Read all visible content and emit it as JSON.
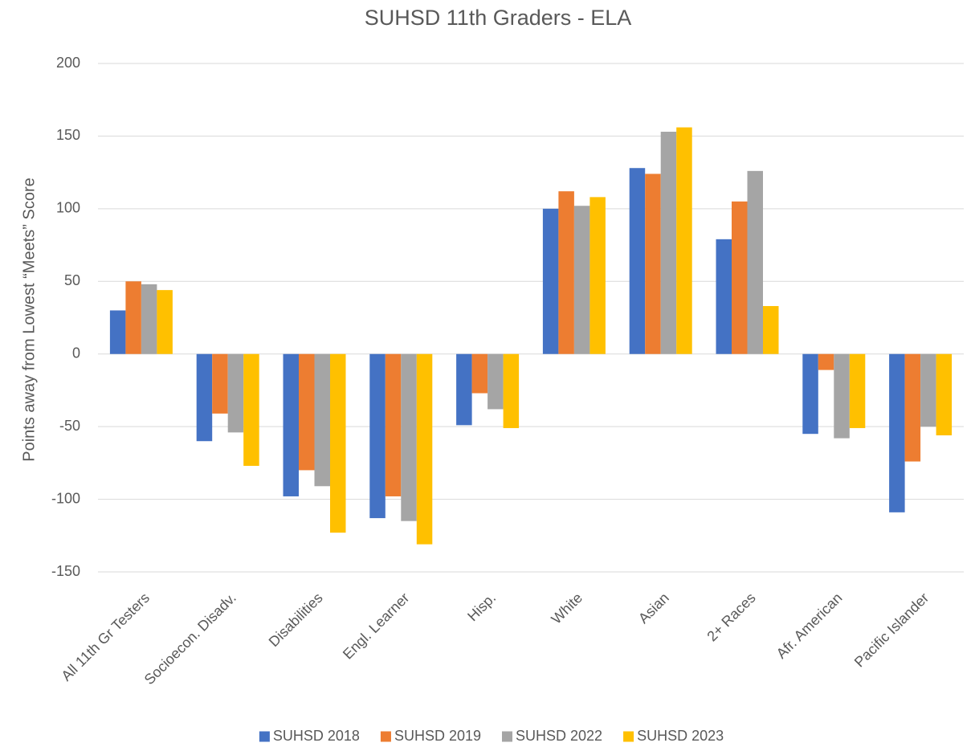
{
  "chart_data": {
    "type": "bar",
    "title": "SUHSD 11th Graders - ELA",
    "y_label": "Points away from Lowest “Meets” Score",
    "categories": [
      "All 11th Gr Testers",
      "Socioecon. Disadv.",
      "Disabilities",
      "Engl. Learner",
      "Hisp.",
      "White",
      "Asian",
      "2+ Races",
      "Afr. American",
      "Pacific Islander"
    ],
    "series": [
      {
        "name": "SUHSD 2018",
        "color": "#4472c4",
        "values": [
          30,
          -60,
          -98,
          -113,
          -49,
          100,
          128,
          79,
          -55,
          -109
        ]
      },
      {
        "name": "SUHSD 2019",
        "color": "#ed7d31",
        "values": [
          50,
          -41,
          -80,
          -98,
          -27,
          112,
          124,
          105,
          -11,
          -74
        ]
      },
      {
        "name": "SUHSD 2022",
        "color": "#a5a5a5",
        "values": [
          48,
          -54,
          -91,
          -115,
          -38,
          102,
          153,
          126,
          -58,
          -50
        ]
      },
      {
        "name": "SUHSD 2023",
        "color": "#ffc000",
        "values": [
          44,
          -77,
          -123,
          -131,
          -51,
          108,
          156,
          33,
          -51,
          -56
        ]
      }
    ],
    "ylim": [
      -150,
      200
    ],
    "yticks": [
      -150,
      -100,
      -50,
      0,
      50,
      100,
      150,
      200
    ],
    "grid": true,
    "legend": "bottom"
  }
}
